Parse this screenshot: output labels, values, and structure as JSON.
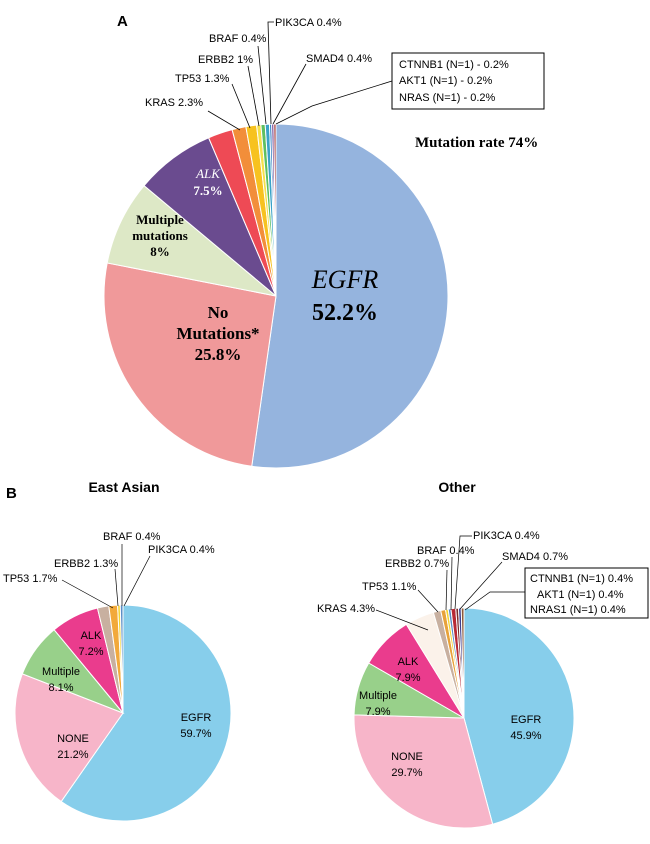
{
  "panel_a": {
    "letter": "A",
    "mutation_rate": "Mutation rate 74%",
    "box_lines": [
      "CTNNB1 (N=1) - 0.2%",
      "AKT1 (N=1) - 0.2%",
      "NRAS (N=1) - 0.2%"
    ],
    "inside_labels": {
      "egfr": "EGFR",
      "egfr_pct": "52.2%",
      "none_l1": "No",
      "none_l2": "Mutations*",
      "none_pct": "25.8%",
      "mult_l1": "Multiple",
      "mult_l2": "mutations",
      "mult_pct": "8%",
      "alk": "ALK",
      "alk_pct": "7.5%"
    },
    "outside_labels": {
      "kras": "KRAS 2.3%",
      "tp53": "TP53 1.3%",
      "erbb2": "ERBB2 1%",
      "braf": "BRAF 0.4%",
      "pik3ca": "PIK3CA 0.4%",
      "smad4": "SMAD4 0.4%"
    }
  },
  "panel_b": {
    "letter": "B",
    "east": {
      "title": "East Asian",
      "inside": {
        "egfr": "EGFR",
        "egfr_pct": "59.7%",
        "none": "NONE",
        "none_pct": "21.2%",
        "mult": "Multiple",
        "mult_pct": "8.1%",
        "alk": "ALK",
        "alk_pct": "7.2%"
      },
      "outside": {
        "tp53": "TP53 1.7%",
        "erbb2": "ERBB2 1.3%",
        "braf": "BRAF 0.4%",
        "pik3ca": "PIK3CA 0.4%"
      }
    },
    "other": {
      "title": "Other",
      "inside": {
        "egfr": "EGFR",
        "egfr_pct": "45.9%",
        "none": "NONE",
        "none_pct": "29.7%",
        "mult": "Multiple",
        "mult_pct": "7.9%",
        "alk": "ALK",
        "alk_pct": "7.9%"
      },
      "outside": {
        "kras": "KRAS 4.3%",
        "tp53": "TP53 1.1%",
        "erbb2": "ERBB2 0.7%",
        "braf": "BRAF 0.4%",
        "pik3ca": "PIK3CA 0.4%",
        "smad4": "SMAD4 0.7%"
      },
      "box_lines": [
        "CTNNB1 (N=1) 0.4%",
        "AKT1 (N=1) 0.4%",
        "NRAS1 (N=1) 0.4%"
      ]
    }
  },
  "chart_data": [
    {
      "type": "pie",
      "title": "Panel A – Mutation rate 74%",
      "categories": [
        "EGFR",
        "No Mutations*",
        "Multiple mutations",
        "ALK",
        "KRAS",
        "TP53",
        "ERBB2",
        "BRAF",
        "PIK3CA",
        "SMAD4",
        "CTNNB1",
        "AKT1",
        "NRAS"
      ],
      "values": [
        52.2,
        25.8,
        8,
        7.5,
        2.3,
        1.3,
        1,
        0.4,
        0.4,
        0.4,
        0.2,
        0.2,
        0.2
      ],
      "colors": [
        "#95b4de",
        "#f0999a",
        "#dde8c6",
        "#6a4b8f",
        "#ee4a55",
        "#f28e3a",
        "#f7c21f",
        "#f4e04a",
        "#5fbf60",
        "#3aa2c7",
        "#2e7dc0",
        "#6b3d8f",
        "#9b2a2a"
      ]
    },
    {
      "type": "pie",
      "title": "East Asian",
      "categories": [
        "EGFR",
        "NONE",
        "Multiple",
        "ALK",
        "TP53",
        "ERBB2",
        "BRAF",
        "PIK3CA"
      ],
      "values": [
        59.7,
        21.2,
        8.1,
        7.2,
        1.7,
        1.3,
        0.4,
        0.4
      ],
      "colors": [
        "#87ceeb",
        "#f7b5c9",
        "#98d08a",
        "#ea3c8d",
        "#c8b0a0",
        "#f2a93b",
        "#f6d330",
        "#5b8ec6"
      ]
    },
    {
      "type": "pie",
      "title": "Other",
      "categories": [
        "EGFR",
        "NONE",
        "Multiple",
        "ALK",
        "KRAS",
        "TP53",
        "ERBB2",
        "BRAF",
        "PIK3CA",
        "SMAD4",
        "CTNNB1",
        "AKT1",
        "NRAS1"
      ],
      "values": [
        45.9,
        29.7,
        7.9,
        7.9,
        4.3,
        1.1,
        0.7,
        0.4,
        0.4,
        0.7,
        0.4,
        0.4,
        0.4
      ],
      "colors": [
        "#87ceeb",
        "#f7b5c9",
        "#98d08a",
        "#ea3c8d",
        "#fbf2ea",
        "#c8b0a0",
        "#e8a23a",
        "#f6d330",
        "#5b8ec6",
        "#b82a35",
        "#7a2e2e",
        "#3f3f8f",
        "#8d5a3a"
      ]
    }
  ]
}
